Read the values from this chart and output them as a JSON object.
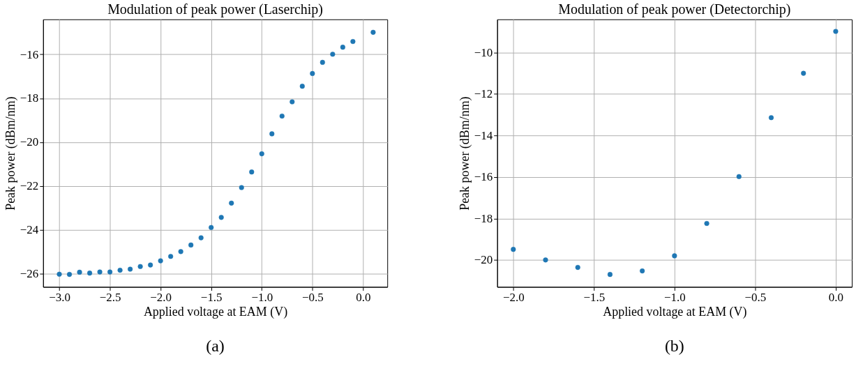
{
  "chart_data": [
    {
      "type": "scatter",
      "title": "Modulation of peak power (Laserchip)",
      "xlabel": "Applied voltage at EAM (V)",
      "ylabel": "Peak power (dBm/nm)",
      "annotations": [
        "(a)"
      ],
      "marker": "circle",
      "grid": true,
      "x": [
        -3.0,
        -2.9,
        -2.8,
        -2.7,
        -2.6,
        -2.5,
        -2.4,
        -2.3,
        -2.2,
        -2.1,
        -2.0,
        -1.9,
        -1.8,
        -1.7,
        -1.6,
        -1.5,
        -1.4,
        -1.3,
        -1.2,
        -1.1,
        -1.0,
        -0.9,
        -0.8,
        -0.7,
        -0.6,
        -0.5,
        -0.4,
        -0.3,
        -0.2,
        -0.1,
        0.1
      ],
      "series": [
        {
          "color": "#1f77b4",
          "values": [
            -26.02,
            -26.03,
            -25.93,
            -25.97,
            -25.92,
            -25.92,
            -25.84,
            -25.79,
            -25.67,
            -25.6,
            -25.41,
            -25.21,
            -24.99,
            -24.69,
            -24.36,
            -23.89,
            -23.43,
            -22.78,
            -22.07,
            -21.36,
            -20.53,
            -19.62,
            -18.81,
            -18.16,
            -17.45,
            -16.87,
            -16.36,
            -15.99,
            -15.67,
            -15.41,
            -14.99
          ]
        }
      ],
      "xlim": [
        -3.16,
        0.24
      ],
      "xticks": [
        {
          "value": -3.0,
          "label": "−3.0"
        },
        {
          "value": -2.5,
          "label": "−2.5"
        },
        {
          "value": -2.0,
          "label": "−2.0"
        },
        {
          "value": -1.5,
          "label": "−1.5"
        },
        {
          "value": -1.0,
          "label": "−1.0"
        },
        {
          "value": -0.5,
          "label": "−0.5"
        },
        {
          "value": 0.0,
          "label": "0.0"
        }
      ],
      "ylim": [
        -26.6,
        -14.4
      ],
      "yticks": [
        {
          "value": -26,
          "label": "−26"
        },
        {
          "value": -24,
          "label": "−24"
        },
        {
          "value": -22,
          "label": "−22"
        },
        {
          "value": -20,
          "label": "−20"
        },
        {
          "value": -18,
          "label": "−18"
        },
        {
          "value": -16,
          "label": "−16"
        }
      ]
    },
    {
      "type": "scatter",
      "title": "Modulation of peak power (Detectorchip)",
      "xlabel": "Applied voltage at EAM (V)",
      "ylabel": "Peak power (dBm/nm)",
      "annotations": [
        "(b)"
      ],
      "marker": "circle",
      "grid": true,
      "x": [
        -2.0,
        -1.8,
        -1.6,
        -1.4,
        -1.2,
        -1.0,
        -0.8,
        -0.6,
        -0.4,
        -0.2,
        0.0
      ],
      "series": [
        {
          "color": "#1f77b4",
          "values": [
            -19.49,
            -20.0,
            -20.36,
            -20.7,
            -20.53,
            -19.8,
            -18.24,
            -15.98,
            -13.14,
            -11.0,
            -8.98
          ]
        }
      ],
      "xlim": [
        -2.1,
        0.1
      ],
      "xticks": [
        {
          "value": -2.0,
          "label": "−2.0"
        },
        {
          "value": -1.5,
          "label": "−1.5"
        },
        {
          "value": -1.0,
          "label": "−1.0"
        },
        {
          "value": -0.5,
          "label": "−0.5"
        },
        {
          "value": 0.0,
          "label": "0.0"
        }
      ],
      "ylim": [
        -21.3,
        -8.4
      ],
      "yticks": [
        {
          "value": -20,
          "label": "−20"
        },
        {
          "value": -18,
          "label": "−18"
        },
        {
          "value": -16,
          "label": "−16"
        },
        {
          "value": -14,
          "label": "−14"
        },
        {
          "value": -12,
          "label": "−12"
        },
        {
          "value": -10,
          "label": "−10"
        }
      ]
    }
  ]
}
